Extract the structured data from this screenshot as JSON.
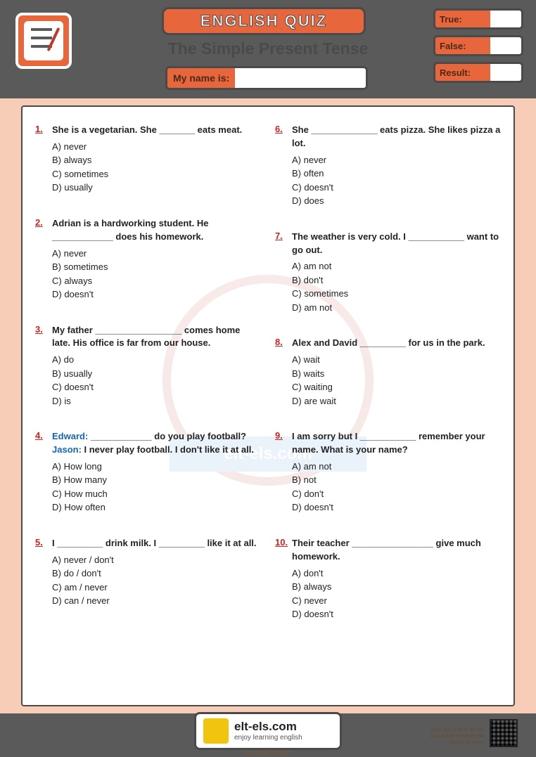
{
  "header": {
    "title": "ENGLISH QUIZ",
    "subtitle": "The Simple Present Tense",
    "name_label": "My name is:",
    "scores": [
      {
        "label": "True:"
      },
      {
        "label": "False:"
      },
      {
        "label": "Result:"
      }
    ]
  },
  "columns": {
    "left": [
      {
        "num": "1.",
        "text": "She is a vegetarian. She _______ eats meat.",
        "choices": [
          "A) never",
          "B) always",
          "C) sometimes",
          "D) usually"
        ]
      },
      {
        "num": "2.",
        "text": "Adrian is a hardworking student. He ____________ does his homework.",
        "choices": [
          "A) never",
          "B) sometimes",
          "C) always",
          "D) doesn't"
        ]
      },
      {
        "num": "3.",
        "text": "My father _________________ comes home late. His office is far from our house.",
        "choices": [
          "A) do",
          "B) usually",
          "C) doesn't",
          "D) is"
        ]
      },
      {
        "num": "4.",
        "speakers": [
          {
            "name": "Edward:",
            "line": " ____________ do you play football?"
          },
          {
            "name": "Jason:",
            "line": " I never play football. I don't like it at all."
          }
        ],
        "choices": [
          "A) How long",
          "B) How many",
          "C) How much",
          "D) How often"
        ]
      },
      {
        "num": "5.",
        "text": "I _________ drink milk. I _________ like it at all.",
        "choices": [
          "A) never / don't",
          "B) do / don't",
          "C) am / never",
          "D) can / never"
        ]
      }
    ],
    "right": [
      {
        "num": "6.",
        "text": "She _____________ eats pizza. She likes pizza a lot.",
        "choices": [
          "A) never",
          "B) often",
          "C) doesn't",
          "D) does"
        ]
      },
      {
        "num": "7.",
        "text": "The weather is very cold. I ___________ want to go out.",
        "choices": [
          "A) am not",
          "B) don't",
          "C) sometimes",
          "D) am not"
        ]
      },
      {
        "num": "8.",
        "text": "Alex and David _________ for us in the park.",
        "choices": [
          "A) wait",
          "B) waits",
          "C) waiting",
          "D) are wait"
        ]
      },
      {
        "num": "9.",
        "text": "I am sorry but I ___________ remember your name. What is your name?",
        "choices": [
          "A) am not",
          "B) not",
          "C) don't",
          "D) doesn't"
        ]
      },
      {
        "num": "10.",
        "text": "Their teacher ________________ give much homework.",
        "choices": [
          "A) don't",
          "B) always",
          "C) never",
          "D) doesn't"
        ]
      }
    ]
  },
  "watermark": {
    "url_text": "elt-els.com"
  },
  "footer": {
    "site": "elt-els.com",
    "tagline": "enjoy learning english",
    "byline": "by Nihat KASIM",
    "qr_hint": "Scan this code to do this quiz online and learn the correct answers"
  },
  "colors": {
    "accent": "#e8663c",
    "header_bg": "#5a5a5a",
    "page_bg": "#f8cdb8",
    "qnum": "#d91e1e",
    "speaker": "#1565c0"
  }
}
